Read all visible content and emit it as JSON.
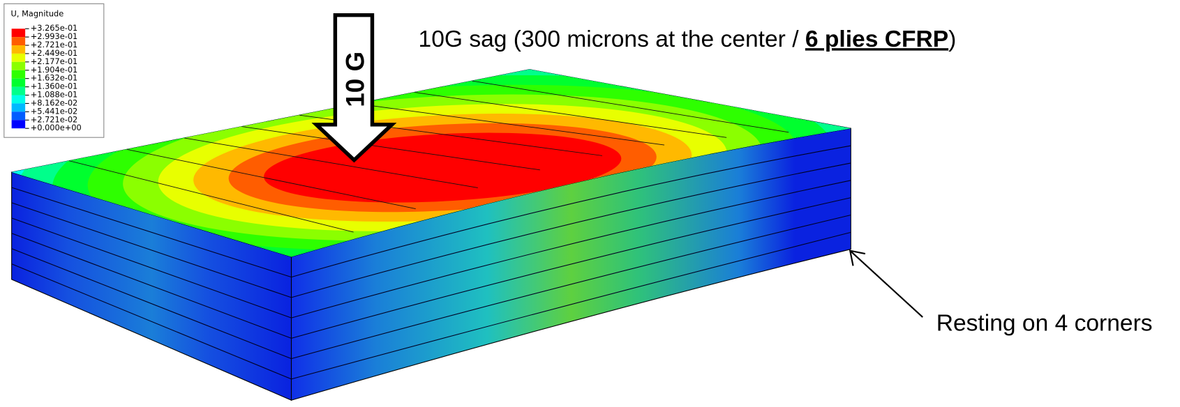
{
  "legend": {
    "title": "U, Magnitude",
    "labels": [
      "+3.265e-01",
      "+2.993e-01",
      "+2.721e-01",
      "+2.449e-01",
      "+2.177e-01",
      "+1.904e-01",
      "+1.632e-01",
      "+1.360e-01",
      "+1.088e-01",
      "+8.162e-02",
      "+5.441e-02",
      "+2.721e-02",
      "+0.000e+00"
    ],
    "colors": [
      "#ff0000",
      "#ff5d00",
      "#ffb900",
      "#e8ff00",
      "#8bff00",
      "#2eff00",
      "#00ff2e",
      "#00ff8b",
      "#00ffe8",
      "#00b9ff",
      "#005dff",
      "#0000ff"
    ]
  },
  "load_arrow": {
    "label": "10 G"
  },
  "caption": {
    "parts": [
      "10G sag (300 microns at the center / ",
      "6 plies CFRP",
      ")"
    ]
  },
  "support_note": {
    "label": "Resting on 4 corners"
  }
}
